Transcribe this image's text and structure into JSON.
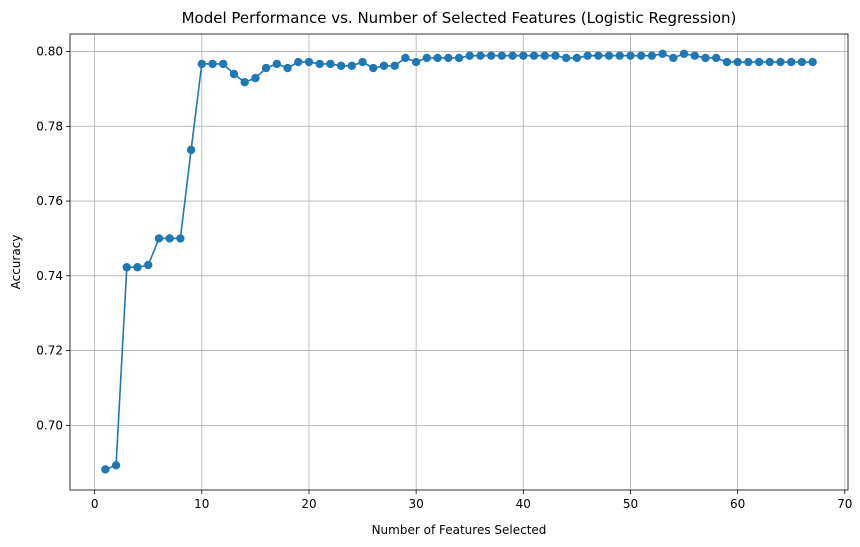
{
  "chart_data": {
    "type": "line",
    "title": "Model Performance vs. Number of Selected Features (Logistic Regression)",
    "xlabel": "Number of Features Selected",
    "ylabel": "Accuracy",
    "xlim": [
      -2.3,
      70.3
    ],
    "ylim": [
      0.6827,
      0.8047
    ],
    "xticks": [
      0,
      10,
      20,
      30,
      40,
      50,
      60,
      70
    ],
    "yticks": [
      0.7,
      0.72,
      0.74,
      0.76,
      0.78,
      0.8
    ],
    "xtick_labels": [
      "0",
      "10",
      "20",
      "30",
      "40",
      "50",
      "60",
      "70"
    ],
    "ytick_labels": [
      "0.70",
      "0.72",
      "0.74",
      "0.76",
      "0.78",
      "0.80"
    ],
    "grid": true,
    "marker": "circle",
    "color": "#1f77b4",
    "grid_color": "#b0b0b0",
    "series": [
      {
        "x": [
          1,
          2,
          3,
          4,
          5,
          6,
          7,
          8,
          9,
          10,
          11,
          12,
          13,
          14,
          15,
          16,
          17,
          18,
          19,
          20,
          21,
          22,
          23,
          24,
          25,
          26,
          27,
          28,
          29,
          30,
          31,
          32,
          33,
          34,
          35,
          36,
          37,
          38,
          39,
          40,
          41,
          42,
          43,
          44,
          45,
          46,
          47,
          48,
          49,
          50,
          51,
          52,
          53,
          54,
          55,
          56,
          57,
          58,
          59,
          60,
          61,
          62,
          63,
          64,
          65,
          66,
          67
        ],
        "values": [
          0.6882,
          0.6893,
          0.7423,
          0.7423,
          0.7429,
          0.75,
          0.75,
          0.75,
          0.7737,
          0.7967,
          0.7967,
          0.7967,
          0.794,
          0.7918,
          0.7929,
          0.7956,
          0.7967,
          0.7956,
          0.7972,
          0.7972,
          0.7967,
          0.7967,
          0.7962,
          0.7962,
          0.7972,
          0.7956,
          0.7962,
          0.7962,
          0.7983,
          0.7972,
          0.7983,
          0.7983,
          0.7983,
          0.7983,
          0.7989,
          0.7989,
          0.7989,
          0.7989,
          0.7989,
          0.7989,
          0.7989,
          0.7989,
          0.7989,
          0.7983,
          0.7983,
          0.7989,
          0.7989,
          0.7989,
          0.7989,
          0.7989,
          0.7989,
          0.7989,
          0.7994,
          0.7983,
          0.7994,
          0.7989,
          0.7983,
          0.7983,
          0.7972,
          0.7972,
          0.7972,
          0.7972,
          0.7972,
          0.7972,
          0.7972,
          0.7972,
          0.7972
        ]
      }
    ]
  }
}
